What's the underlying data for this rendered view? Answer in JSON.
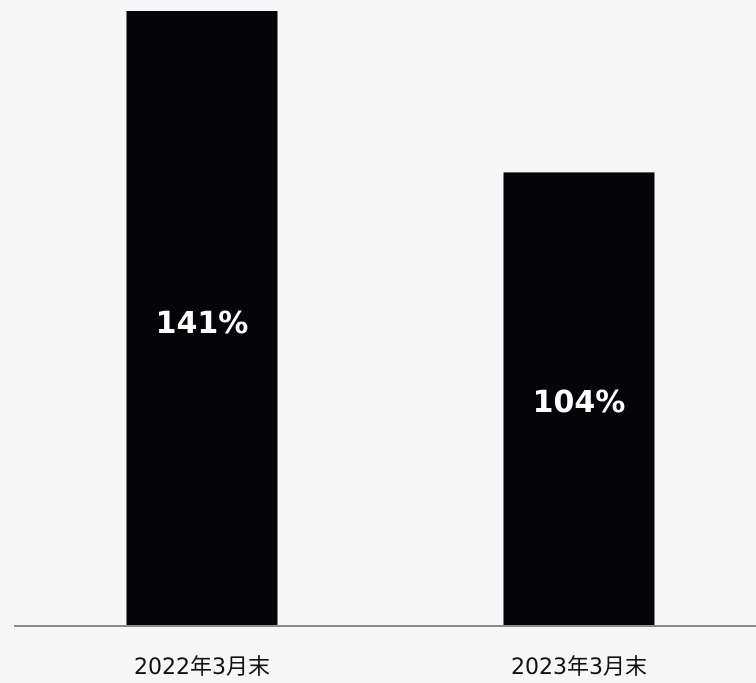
{
  "colors": {
    "background": "#f7f7f7",
    "bar": "#050409",
    "axis": "#8a8a8a",
    "label_text": "#ffffff",
    "category_text": "#111111"
  },
  "chart_data": {
    "type": "bar",
    "categories": [
      "2022年3月末",
      "2023年3月末"
    ],
    "values": [
      141,
      104
    ],
    "data_labels": [
      "141%",
      "104%"
    ],
    "ylim": [
      0,
      141
    ],
    "title": "",
    "xlabel": "",
    "ylabel": "",
    "grid": false,
    "legend": "none"
  }
}
